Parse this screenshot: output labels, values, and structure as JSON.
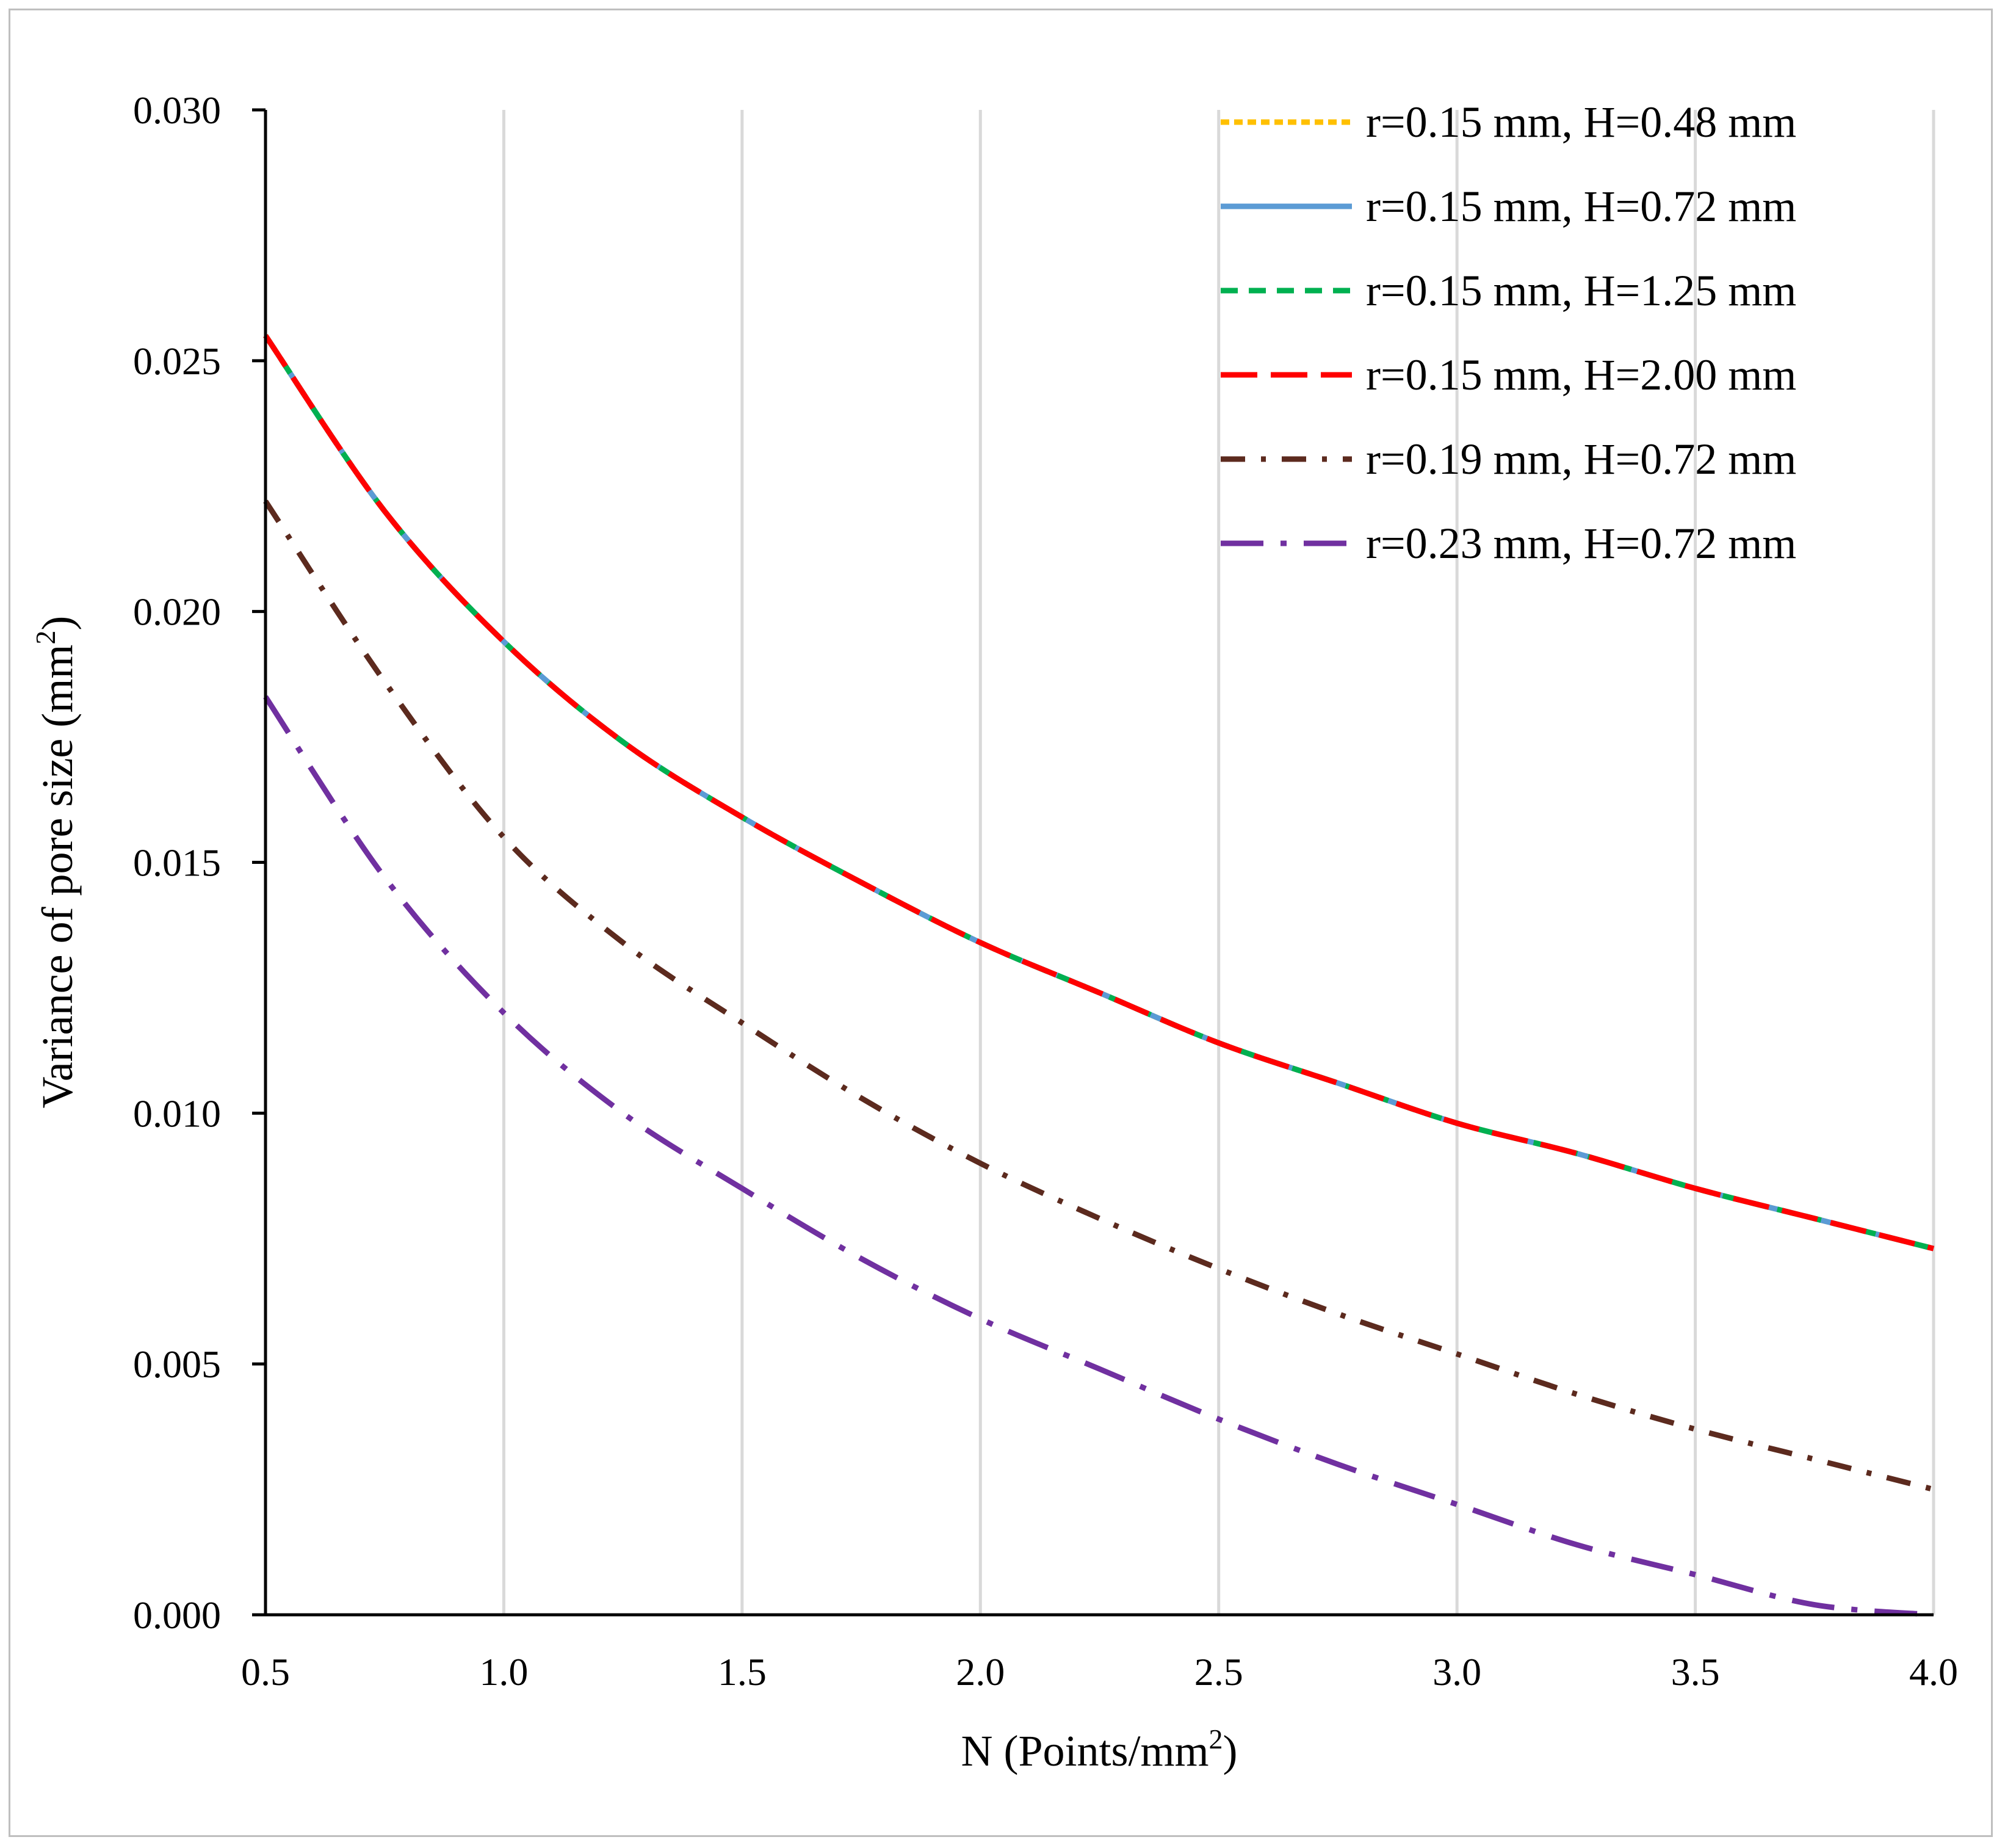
{
  "chart_data": {
    "type": "line",
    "title": "",
    "xlabel": "N (Points/mm",
    "xlabel_sup": "2",
    "xlabel_end": ")",
    "ylabel": "Variance of pore size (mm",
    "ylabel_sup": "2",
    "ylabel_end": ")",
    "xlim": [
      0.5,
      4.0
    ],
    "ylim": [
      0.0,
      0.03
    ],
    "x_ticks": [
      "0.5",
      "1.0",
      "1.5",
      "2.0",
      "2.5",
      "3.0",
      "3.5",
      "4.0"
    ],
    "y_ticks": [
      "0.000",
      "0.005",
      "0.010",
      "0.015",
      "0.020",
      "0.025",
      "0.030"
    ],
    "grid": "vertical",
    "legend_position": "top-right",
    "x": [
      0.5,
      0.75,
      1.0,
      1.25,
      1.5,
      1.75,
      2.0,
      2.25,
      2.5,
      2.75,
      3.0,
      3.25,
      3.5,
      3.75,
      4.0
    ],
    "series": [
      {
        "name": "r=0.15 mm, H=0.48 mm",
        "color": "#FFC000",
        "dash": "dotted",
        "values": [
          0.0255,
          0.022,
          0.0194,
          0.0174,
          0.0159,
          0.0146,
          0.0134,
          0.0124,
          0.0114,
          0.0106,
          0.0098,
          0.0092,
          0.0085,
          0.0079,
          0.0073
        ]
      },
      {
        "name": "r=0.15 mm, H=0.72 mm",
        "color": "#5B9BD5",
        "dash": "solid",
        "values": [
          0.0255,
          0.022,
          0.0194,
          0.0174,
          0.0159,
          0.0146,
          0.0134,
          0.0124,
          0.0114,
          0.0106,
          0.0098,
          0.0092,
          0.0085,
          0.0079,
          0.0073
        ]
      },
      {
        "name": "r=0.15 mm, H=1.25 mm",
        "color": "#00B050",
        "dash": "dash",
        "values": [
          0.0255,
          0.022,
          0.0194,
          0.0174,
          0.0159,
          0.0146,
          0.0134,
          0.0124,
          0.0114,
          0.0106,
          0.0098,
          0.0092,
          0.0085,
          0.0079,
          0.0073
        ]
      },
      {
        "name": "r=0.15 mm, H=2.00 mm",
        "color": "#FF0000",
        "dash": "longdash",
        "values": [
          0.0255,
          0.022,
          0.0194,
          0.0174,
          0.0159,
          0.0146,
          0.0134,
          0.0124,
          0.0114,
          0.0106,
          0.0098,
          0.0092,
          0.0085,
          0.0079,
          0.0073
        ]
      },
      {
        "name": "r=0.19 mm, H=0.72 mm",
        "color": "#5C2A1E",
        "dash": "dashdot",
        "values": [
          0.0222,
          0.0186,
          0.0155,
          0.0134,
          0.0118,
          0.0103,
          0.009,
          0.0079,
          0.0069,
          0.006,
          0.0052,
          0.0044,
          0.0037,
          0.0031,
          0.0025
        ]
      },
      {
        "name": "r=0.23 mm, H=0.72 mm",
        "color": "#7030A0",
        "dash": "longdashdot",
        "values": [
          0.0183,
          0.0147,
          0.012,
          0.01,
          0.0085,
          0.0071,
          0.0059,
          0.0049,
          0.0039,
          0.003,
          0.0022,
          0.0014,
          0.0008,
          0.0002,
          0.0
        ]
      }
    ]
  }
}
